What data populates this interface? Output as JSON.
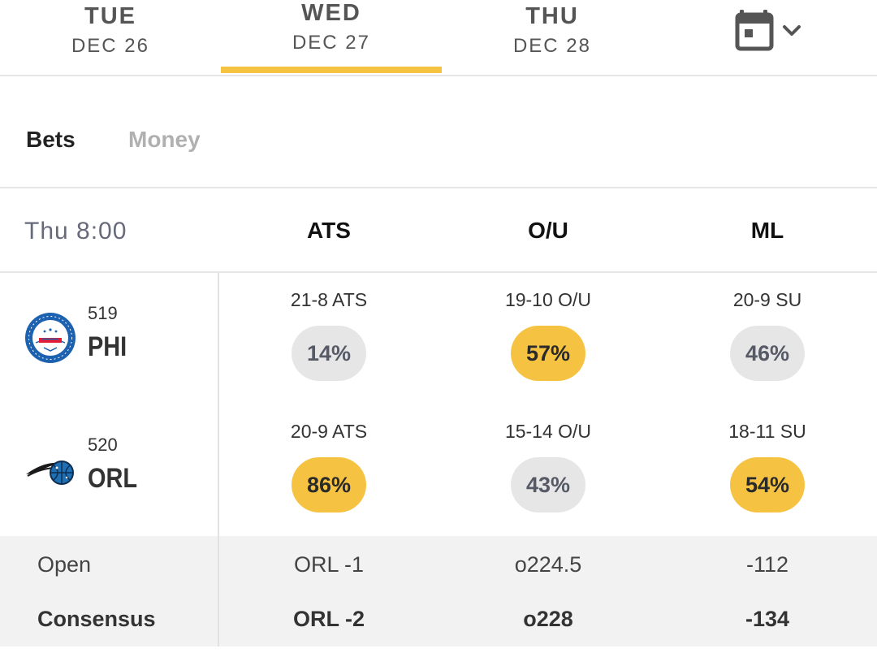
{
  "date_tabs": [
    {
      "dow": "TUE",
      "date": "DEC 26",
      "active": false
    },
    {
      "dow": "WED",
      "date": "DEC 27",
      "active": true
    },
    {
      "dow": "THU",
      "date": "DEC 28",
      "active": false
    }
  ],
  "calendar_icon": "calendar-icon",
  "accent_color": "#f5c242",
  "tabs": {
    "bets": "Bets",
    "money": "Money"
  },
  "header": {
    "time": "Thu 8:00",
    "ats": "ATS",
    "ou": "O/U",
    "ml": "ML"
  },
  "teams": [
    {
      "rotation": "519",
      "abbr": "PHI",
      "ats_record": "21-8 ATS",
      "ats_pct": "14%",
      "ou_record": "19-10 O/U",
      "ou_pct": "57%",
      "ml_record": "20-9 SU",
      "ml_pct": "46%"
    },
    {
      "rotation": "520",
      "abbr": "ORL",
      "ats_record": "20-9 ATS",
      "ats_pct": "86%",
      "ou_record": "15-14 O/U",
      "ou_pct": "43%",
      "ml_record": "18-11 SU",
      "ml_pct": "54%"
    }
  ],
  "odds": {
    "open": {
      "label": "Open",
      "ats": "ORL -1",
      "ou": "o224.5",
      "ml": "-112"
    },
    "consensus": {
      "label": "Consensus",
      "ats": "ORL -2",
      "ou": "o228",
      "ml": "-134"
    }
  }
}
